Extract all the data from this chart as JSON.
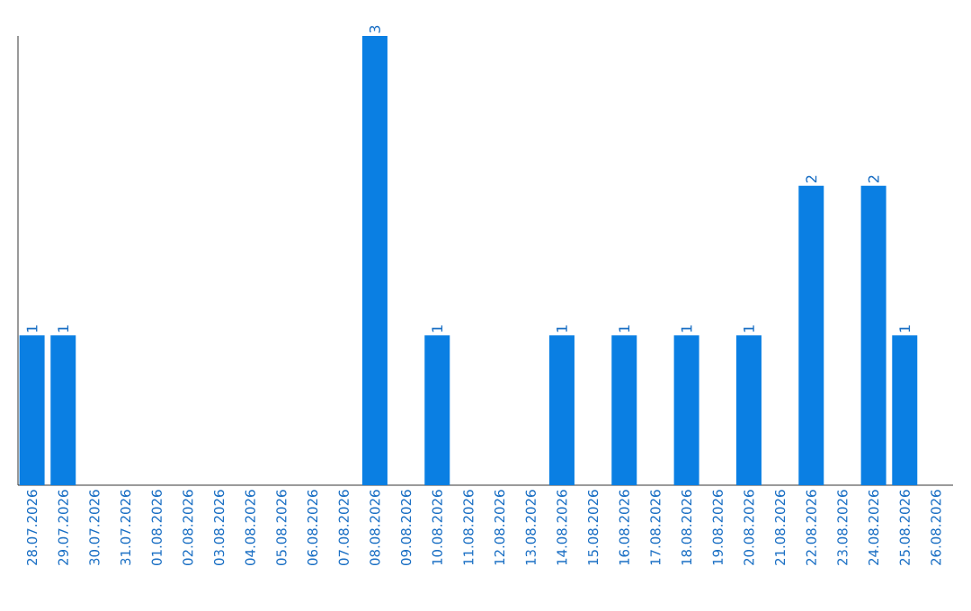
{
  "chart_data": {
    "type": "bar",
    "categories": [
      "28.07.2026",
      "29.07.2026",
      "30.07.2026",
      "31.07.2026",
      "01.08.2026",
      "02.08.2026",
      "03.08.2026",
      "04.08.2026",
      "05.08.2026",
      "06.08.2026",
      "07.08.2026",
      "08.08.2026",
      "09.08.2026",
      "10.08.2026",
      "11.08.2026",
      "12.08.2026",
      "13.08.2026",
      "14.08.2026",
      "15.08.2026",
      "16.08.2026",
      "17.08.2026",
      "18.08.2026",
      "19.08.2026",
      "20.08.2026",
      "21.08.2026",
      "22.08.2026",
      "23.08.2026",
      "24.08.2026",
      "25.08.2026",
      "26.08.2026"
    ],
    "values": [
      1,
      1,
      0,
      0,
      0,
      0,
      0,
      0,
      0,
      0,
      0,
      3,
      0,
      1,
      0,
      0,
      0,
      1,
      0,
      1,
      0,
      1,
      0,
      1,
      0,
      2,
      0,
      2,
      1,
      0
    ],
    "value_labels": [
      "1",
      "1",
      null,
      null,
      null,
      null,
      null,
      null,
      null,
      null,
      null,
      "3",
      null,
      "1",
      null,
      null,
      null,
      "1",
      null,
      "1",
      null,
      "1",
      null,
      "1",
      null,
      "2",
      null,
      "2",
      "1",
      null
    ],
    "color": "#0a7fe3",
    "ylim": [
      0,
      3
    ],
    "tick_labels": "x"
  }
}
